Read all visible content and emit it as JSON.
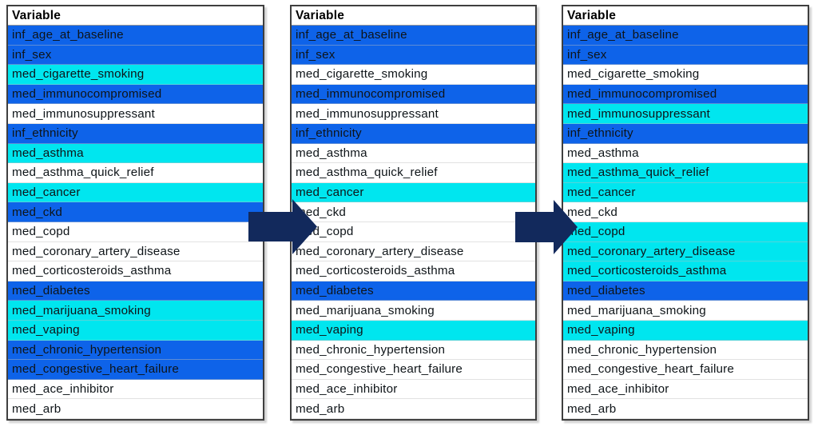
{
  "colors": {
    "blue": "#0E63E9",
    "cyan": "#00E6EF",
    "white": "#FFFFFF",
    "arrow_navy": "#12295C",
    "row_text": "#0E1418"
  },
  "arrow_icon": "right-block-arrow",
  "tables": [
    {
      "header": "Variable",
      "rows": [
        {
          "label": "inf_age_at_baseline",
          "highlight": "blue"
        },
        {
          "label": "inf_sex",
          "highlight": "blue"
        },
        {
          "label": "med_cigarette_smoking",
          "highlight": "cyan"
        },
        {
          "label": "med_immunocompromised",
          "highlight": "blue"
        },
        {
          "label": "med_immunosuppressant",
          "highlight": "white"
        },
        {
          "label": "inf_ethnicity",
          "highlight": "blue"
        },
        {
          "label": "med_asthma",
          "highlight": "cyan"
        },
        {
          "label": "med_asthma_quick_relief",
          "highlight": "white"
        },
        {
          "label": "med_cancer",
          "highlight": "cyan"
        },
        {
          "label": "med_ckd",
          "highlight": "blue"
        },
        {
          "label": "med_copd",
          "highlight": "white"
        },
        {
          "label": "med_coronary_artery_disease",
          "highlight": "white"
        },
        {
          "label": "med_corticosteroids_asthma",
          "highlight": "white"
        },
        {
          "label": "med_diabetes",
          "highlight": "blue"
        },
        {
          "label": "med_marijuana_smoking",
          "highlight": "cyan"
        },
        {
          "label": "med_vaping",
          "highlight": "cyan"
        },
        {
          "label": "med_chronic_hypertension",
          "highlight": "blue"
        },
        {
          "label": "med_congestive_heart_failure",
          "highlight": "blue"
        },
        {
          "label": "med_ace_inhibitor",
          "highlight": "white"
        },
        {
          "label": "med_arb",
          "highlight": "white"
        }
      ]
    },
    {
      "header": "Variable",
      "rows": [
        {
          "label": "inf_age_at_baseline",
          "highlight": "blue"
        },
        {
          "label": "inf_sex",
          "highlight": "blue"
        },
        {
          "label": "med_cigarette_smoking",
          "highlight": "white"
        },
        {
          "label": "med_immunocompromised",
          "highlight": "blue"
        },
        {
          "label": "med_immunosuppressant",
          "highlight": "white"
        },
        {
          "label": "inf_ethnicity",
          "highlight": "blue"
        },
        {
          "label": "med_asthma",
          "highlight": "white"
        },
        {
          "label": "med_asthma_quick_relief",
          "highlight": "white"
        },
        {
          "label": "med_cancer",
          "highlight": "cyan"
        },
        {
          "label": "med_ckd",
          "highlight": "white"
        },
        {
          "label": "med_copd",
          "highlight": "white"
        },
        {
          "label": "med_coronary_artery_disease",
          "highlight": "white"
        },
        {
          "label": "med_corticosteroids_asthma",
          "highlight": "white"
        },
        {
          "label": "med_diabetes",
          "highlight": "blue"
        },
        {
          "label": "med_marijuana_smoking",
          "highlight": "white"
        },
        {
          "label": "med_vaping",
          "highlight": "cyan"
        },
        {
          "label": "med_chronic_hypertension",
          "highlight": "white"
        },
        {
          "label": "med_congestive_heart_failure",
          "highlight": "white"
        },
        {
          "label": "med_ace_inhibitor",
          "highlight": "white"
        },
        {
          "label": "med_arb",
          "highlight": "white"
        }
      ]
    },
    {
      "header": "Variable",
      "rows": [
        {
          "label": "inf_age_at_baseline",
          "highlight": "blue"
        },
        {
          "label": "inf_sex",
          "highlight": "blue"
        },
        {
          "label": "med_cigarette_smoking",
          "highlight": "white"
        },
        {
          "label": "med_immunocompromised",
          "highlight": "blue"
        },
        {
          "label": "med_immunosuppressant",
          "highlight": "cyan"
        },
        {
          "label": "inf_ethnicity",
          "highlight": "blue"
        },
        {
          "label": "med_asthma",
          "highlight": "white"
        },
        {
          "label": "med_asthma_quick_relief",
          "highlight": "cyan"
        },
        {
          "label": "med_cancer",
          "highlight": "cyan"
        },
        {
          "label": "med_ckd",
          "highlight": "white"
        },
        {
          "label": "med_copd",
          "highlight": "cyan"
        },
        {
          "label": "med_coronary_artery_disease",
          "highlight": "cyan"
        },
        {
          "label": "med_corticosteroids_asthma",
          "highlight": "cyan"
        },
        {
          "label": "med_diabetes",
          "highlight": "blue"
        },
        {
          "label": "med_marijuana_smoking",
          "highlight": "white"
        },
        {
          "label": "med_vaping",
          "highlight": "cyan"
        },
        {
          "label": "med_chronic_hypertension",
          "highlight": "white"
        },
        {
          "label": "med_congestive_heart_failure",
          "highlight": "white"
        },
        {
          "label": "med_ace_inhibitor",
          "highlight": "white"
        },
        {
          "label": "med_arb",
          "highlight": "white"
        }
      ]
    }
  ]
}
